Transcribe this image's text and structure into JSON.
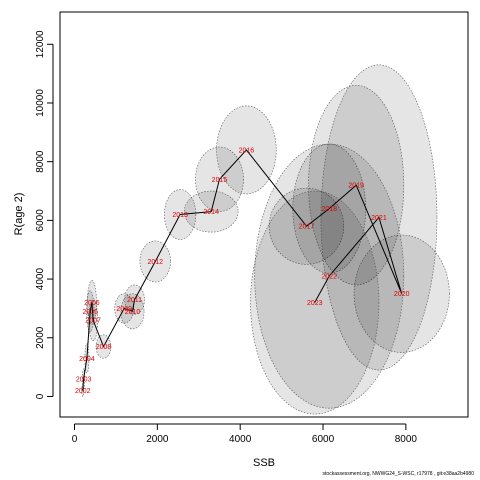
{
  "chart_data": {
    "type": "line",
    "xlabel": "SSB",
    "ylabel": "R(age 2)",
    "xlim": [
      -350,
      9500
    ],
    "ylim": [
      -700,
      13100
    ],
    "x_ticks": [
      0,
      2000,
      4000,
      6000,
      8000
    ],
    "y_ticks": [
      0,
      2000,
      4000,
      6000,
      8000,
      10000,
      12000
    ],
    "grid": false,
    "series": [
      {
        "points": [
          {
            "year": "2002",
            "x": 200,
            "y": 200
          },
          {
            "year": "2003",
            "x": 220,
            "y": 600
          },
          {
            "year": "2004",
            "x": 300,
            "y": 1300
          },
          {
            "year": "2005",
            "x": 380,
            "y": 2900
          },
          {
            "year": "2006",
            "x": 420,
            "y": 3200
          },
          {
            "year": "2007",
            "x": 450,
            "y": 2600
          },
          {
            "year": "2008",
            "x": 700,
            "y": 1700
          },
          {
            "year": "2009",
            "x": 1200,
            "y": 3000
          },
          {
            "year": "2010",
            "x": 1400,
            "y": 2900
          },
          {
            "year": "2011",
            "x": 1450,
            "y": 3300
          },
          {
            "year": "2012",
            "x": 1950,
            "y": 4600
          },
          {
            "year": "2013",
            "x": 2550,
            "y": 6200
          },
          {
            "year": "2014",
            "x": 3300,
            "y": 6300
          },
          {
            "year": "2015",
            "x": 3500,
            "y": 7400
          },
          {
            "year": "2016",
            "x": 4150,
            "y": 8400
          },
          {
            "year": "2017",
            "x": 5600,
            "y": 5800
          },
          {
            "year": "2018",
            "x": 6150,
            "y": 6400
          },
          {
            "year": "2019",
            "x": 6800,
            "y": 7200
          },
          {
            "year": "2020",
            "x": 7900,
            "y": 3500
          },
          {
            "year": "2021",
            "x": 7350,
            "y": 6100
          },
          {
            "year": "2022",
            "x": 6150,
            "y": 4100
          },
          {
            "year": "2023",
            "x": 5800,
            "y": 3200
          }
        ]
      }
    ],
    "ellipses": [
      {
        "x": 200,
        "y": 200,
        "rx": 25,
        "ry": 200
      },
      {
        "x": 220,
        "y": 600,
        "rx": 30,
        "ry": 350
      },
      {
        "x": 300,
        "y": 1300,
        "rx": 50,
        "ry": 500
      },
      {
        "x": 380,
        "y": 2900,
        "rx": 90,
        "ry": 700
      },
      {
        "x": 420,
        "y": 3200,
        "rx": 110,
        "ry": 750
      },
      {
        "x": 450,
        "y": 2600,
        "rx": 110,
        "ry": 700
      },
      {
        "x": 700,
        "y": 1700,
        "rx": 180,
        "ry": 400
      },
      {
        "x": 1200,
        "y": 3000,
        "rx": 230,
        "ry": 500
      },
      {
        "x": 1400,
        "y": 2900,
        "rx": 280,
        "ry": 600
      },
      {
        "x": 1450,
        "y": 3300,
        "rx": 240,
        "ry": 500
      },
      {
        "x": 1950,
        "y": 4600,
        "rx": 370,
        "ry": 700
      },
      {
        "x": 2550,
        "y": 6200,
        "rx": 380,
        "ry": 850
      },
      {
        "x": 3300,
        "y": 6300,
        "rx": 650,
        "ry": 700
      },
      {
        "x": 3500,
        "y": 7400,
        "rx": 580,
        "ry": 1100
      },
      {
        "x": 4150,
        "y": 8400,
        "rx": 720,
        "ry": 1500
      },
      {
        "x": 5600,
        "y": 5800,
        "rx": 900,
        "ry": 1300
      },
      {
        "x": 6150,
        "y": 6400,
        "rx": 880,
        "ry": 2200
      },
      {
        "x": 6800,
        "y": 7200,
        "rx": 1150,
        "ry": 3400
      },
      {
        "x": 7900,
        "y": 3500,
        "rx": 1150,
        "ry": 2000
      },
      {
        "x": 7350,
        "y": 6100,
        "rx": 1400,
        "ry": 5200
      },
      {
        "x": 6150,
        "y": 4100,
        "rx": 1800,
        "ry": 4500
      },
      {
        "x": 5800,
        "y": 3200,
        "rx": 1550,
        "ry": 3800
      }
    ]
  },
  "footer": "stockassessment.org, NWWG24_S-WSC, r17978 , git:e38aa2b4980"
}
